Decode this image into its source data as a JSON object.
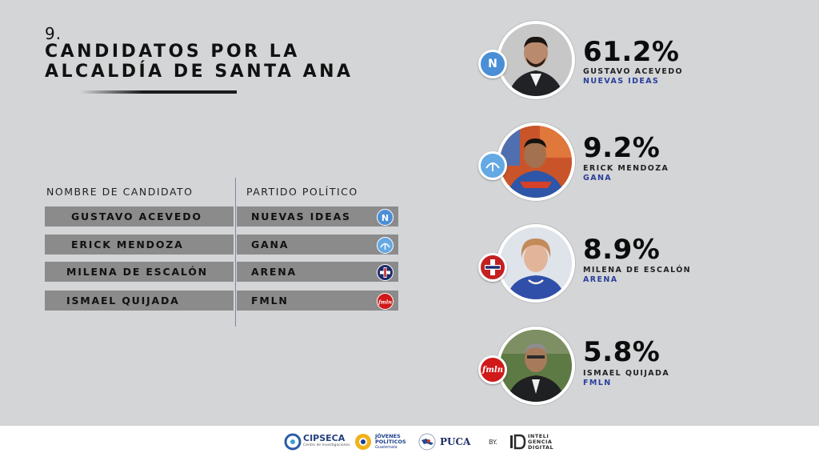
{
  "heading": {
    "number": "9.",
    "title_line1": "CANDIDATOS POR LA",
    "title_line2": "ALCALDÍA DE SANTA ANA"
  },
  "table": {
    "col_name": "NOMBRE DE CANDIDATO",
    "col_party": "PARTIDO POLÍTICO",
    "rows": [
      {
        "name": "GUSTAVO ACEVEDO",
        "party": "NUEVAS IDEAS",
        "icon": "nuevas-ideas-icon"
      },
      {
        "name": "ERICK MENDOZA",
        "party": "GANA",
        "icon": "gana-icon"
      },
      {
        "name": "MILENA DE ESCALÓN",
        "party": "ARENA",
        "icon": "arena-icon"
      },
      {
        "name": "ISMAEL QUIJADA",
        "party": "FMLN",
        "icon": "fmln-icon"
      }
    ]
  },
  "results": [
    {
      "pct": "61.2%",
      "name": "GUSTAVO ACEVEDO",
      "party": "NUEVAS IDEAS",
      "badge_text": "N"
    },
    {
      "pct": "9.2%",
      "name": "ERICK MENDOZA",
      "party": "GANA"
    },
    {
      "pct": "8.9%",
      "name": "MILENA DE ESCALÓN",
      "party": "ARENA"
    },
    {
      "pct": "5.8%",
      "name": "ISMAEL QUIJADA",
      "party": "FMLN",
      "badge_text": "fmln"
    }
  ],
  "footer": {
    "cipseca": "CIPSECA",
    "cipseca_sub": "Centro de Investigaciones",
    "jovenes_line1": "JÓVENES",
    "jovenes_line2": "POLÍTICOS",
    "jovenes_line3": "Guatemala",
    "puca": "PUCA",
    "by": "BY.",
    "inteligencia_line1": "INTELI",
    "inteligencia_line2": "GENCIA",
    "inteligencia_line3": "DIGITAL"
  },
  "colors": {
    "nuevas_ideas": "#4a8fd6",
    "gana": "#64a9e3",
    "arena_red": "#c32021",
    "fmln_red": "#d01919",
    "party_text": "#2a3f9a"
  }
}
